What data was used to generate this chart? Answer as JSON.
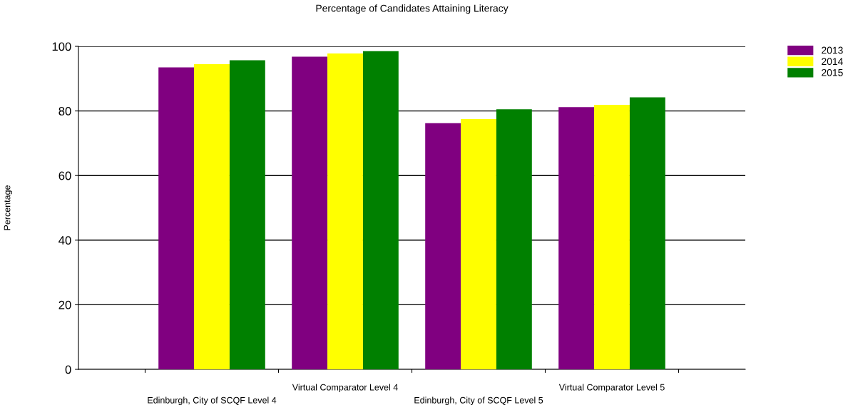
{
  "chart_data": {
    "type": "bar",
    "title": "Percentage of Candidates Attaining Literacy",
    "ylabel": "Percentage",
    "categories": [
      "Edinburgh, City of SCQF Level 4",
      "Virtual Comparator Level 4",
      "Edinburgh, City of SCQF Level 5",
      "Virtual Comparator Level 5"
    ],
    "series": [
      {
        "name": "2013",
        "color": "#800080",
        "values": [
          93.5,
          96.8,
          76.2,
          81.2
        ]
      },
      {
        "name": "2014",
        "color": "#ffff00",
        "values": [
          94.5,
          97.8,
          77.5,
          81.9
        ]
      },
      {
        "name": "2015",
        "color": "#008000",
        "values": [
          95.7,
          98.5,
          80.5,
          84.2
        ]
      }
    ],
    "ylim": [
      0,
      100
    ],
    "yticks": [
      0,
      20,
      40,
      60,
      80,
      100
    ],
    "grid": "y",
    "legend": "top right"
  }
}
